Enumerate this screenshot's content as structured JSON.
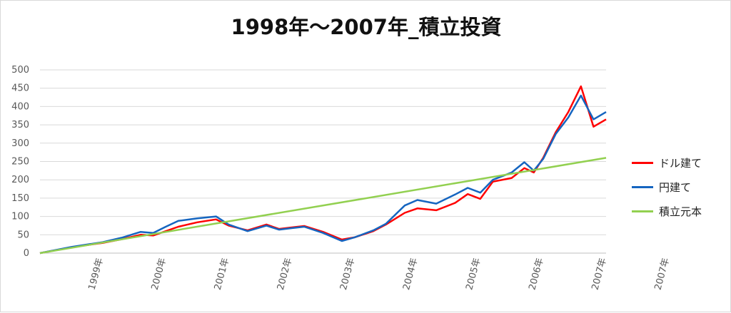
{
  "chart_data": {
    "type": "line",
    "title": "1998年～2007年_積立投資",
    "ylim": [
      0,
      500
    ],
    "y_ticks": [
      "0",
      "50",
      "100",
      "150",
      "200",
      "250",
      "300",
      "350",
      "400",
      "450",
      "500"
    ],
    "x_ticks": [
      "1999年",
      "2000年",
      "2001年",
      "2002年",
      "2003年",
      "2004年",
      "2005年",
      "2006年",
      "2007年",
      "2007年"
    ],
    "grid": true,
    "legend_position": "right",
    "series": [
      {
        "name": "ドル建て",
        "color": "#ff0000",
        "x": [
          0,
          0.5,
          1,
          1.3,
          1.6,
          1.8,
          2,
          2.2,
          2.5,
          2.8,
          3,
          3.3,
          3.6,
          3.8,
          4,
          4.2,
          4.5,
          4.8,
          5,
          5.3,
          5.5,
          5.8,
          6,
          6.3,
          6.6,
          6.8,
          7,
          7.2,
          7.5,
          7.7,
          7.85,
          8,
          8.2,
          8.4,
          8.6,
          8.8,
          9
        ],
        "y": [
          0,
          16,
          28,
          38,
          50,
          48,
          60,
          72,
          84,
          92,
          75,
          62,
          78,
          66,
          70,
          74,
          58,
          37,
          43,
          60,
          78,
          110,
          122,
          117,
          137,
          161,
          148,
          195,
          205,
          232,
          220,
          260,
          330,
          385,
          455,
          345,
          365
        ]
      },
      {
        "name": "円建て",
        "color": "#1565c0",
        "x": [
          0,
          0.5,
          1,
          1.3,
          1.6,
          1.8,
          2,
          2.2,
          2.5,
          2.8,
          3,
          3.3,
          3.6,
          3.8,
          4,
          4.2,
          4.5,
          4.8,
          5,
          5.3,
          5.5,
          5.8,
          6,
          6.3,
          6.6,
          6.8,
          7,
          7.2,
          7.5,
          7.7,
          7.85,
          8,
          8.2,
          8.4,
          8.6,
          8.8,
          9
        ],
        "y": [
          0,
          17,
          30,
          42,
          58,
          55,
          72,
          88,
          95,
          100,
          78,
          60,
          75,
          64,
          68,
          72,
          55,
          33,
          43,
          62,
          80,
          130,
          145,
          135,
          160,
          178,
          165,
          200,
          220,
          248,
          225,
          257,
          325,
          370,
          430,
          365,
          385
        ]
      },
      {
        "name": "積立元本",
        "color": "#92d050",
        "x": [
          0,
          9
        ],
        "y": [
          0,
          260
        ]
      }
    ]
  }
}
